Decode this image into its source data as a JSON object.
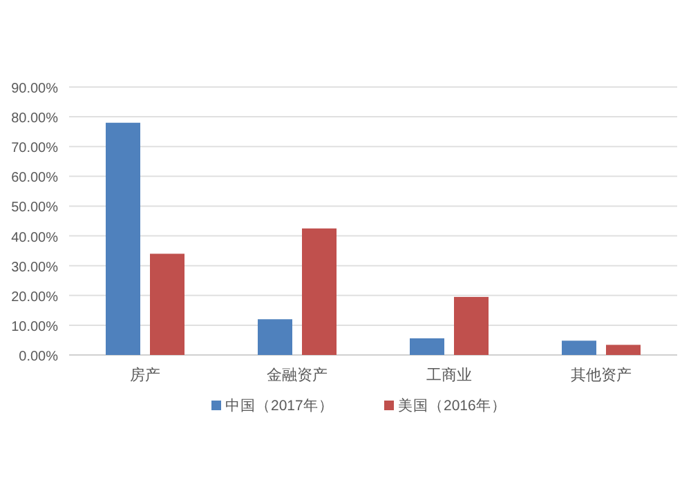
{
  "chart_data": {
    "type": "bar",
    "categories": [
      "房产",
      "金融资产",
      "工商业",
      "其他资产"
    ],
    "series": [
      {
        "name": "中国（2017年）",
        "color": "#4f81bd",
        "values": [
          78,
          12,
          5.6,
          4.8
        ]
      },
      {
        "name": "美国（2016年）",
        "color": "#c0504d",
        "values": [
          34,
          42.5,
          19.5,
          3.4
        ]
      }
    ],
    "ylim": [
      0,
      90
    ],
    "yticks": [
      {
        "value": 0,
        "label": "0.00%"
      },
      {
        "value": 10,
        "label": "10.00%"
      },
      {
        "value": 20,
        "label": "20.00%"
      },
      {
        "value": 30,
        "label": "30.00%"
      },
      {
        "value": 40,
        "label": "40.00%"
      },
      {
        "value": 50,
        "label": "50.00%"
      },
      {
        "value": 60,
        "label": "60.00%"
      },
      {
        "value": 70,
        "label": "70.00%"
      },
      {
        "value": 80,
        "label": "80.00%"
      },
      {
        "value": 90,
        "label": "90.00%"
      }
    ],
    "grid": "y",
    "legend": "bottom"
  }
}
